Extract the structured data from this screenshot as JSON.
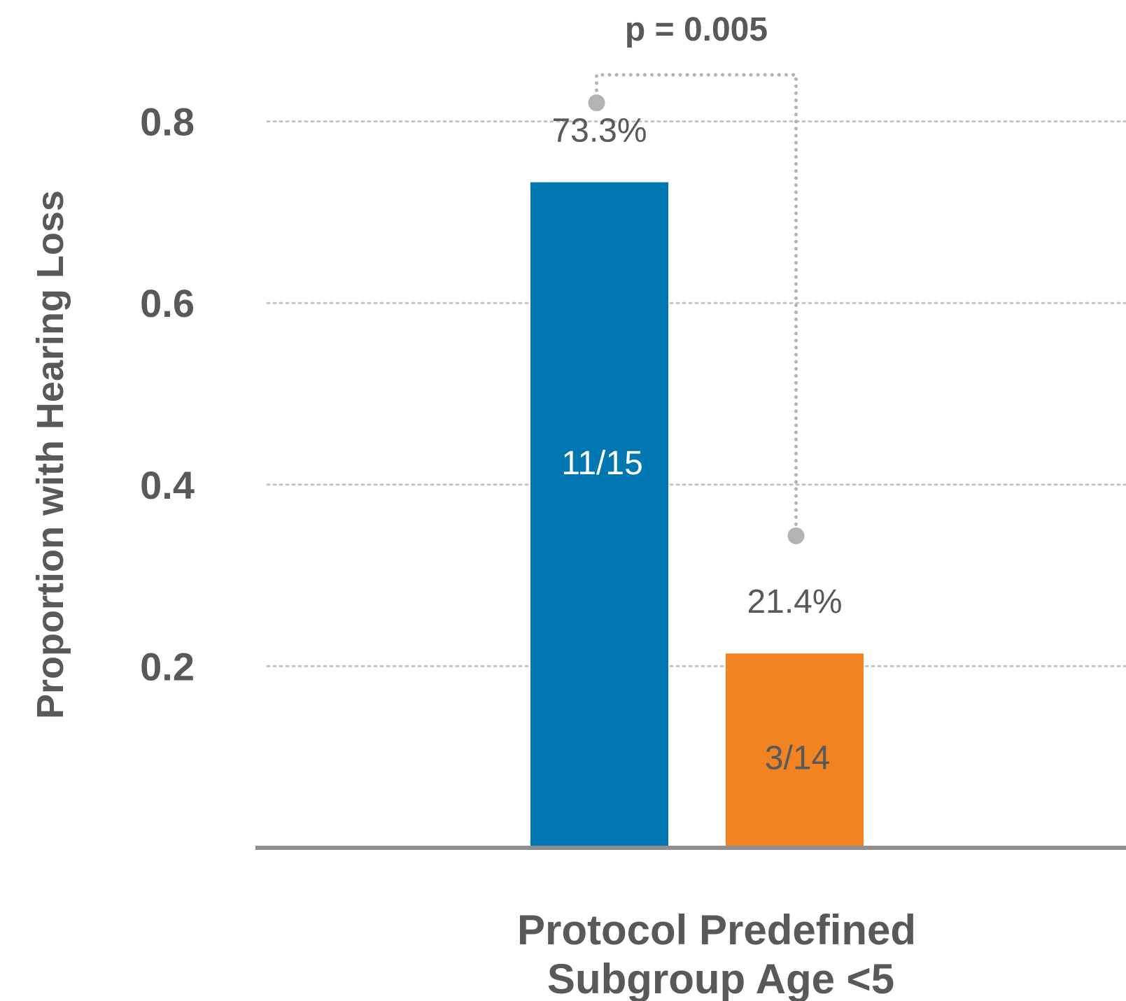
{
  "chart_data": {
    "type": "bar",
    "title": "",
    "ylabel": "Proportion with Hearing Loss",
    "xlabel": "",
    "category_label_lines": [
      "Protocol Predefined",
      "Subgroup Age <5"
    ],
    "ylim": [
      0,
      0.8
    ],
    "yticks": [
      0.2,
      0.4,
      0.6,
      0.8
    ],
    "ytick_labels": [
      "0.2",
      "0.4",
      "0.6",
      "0.8"
    ],
    "grid": true,
    "legend": "none",
    "series": [
      {
        "value": 0.733,
        "value_label": "73.3%",
        "count_label": "11/15",
        "color": "#0077b0",
        "count_label_color": "#ffffff"
      },
      {
        "value": 0.214,
        "value_label": "21.4%",
        "count_label": "3/14",
        "color": "#f28322",
        "count_label_color": "#58595b"
      }
    ],
    "annotation": {
      "text": "p = 0.005",
      "color": "#b3b3b3"
    }
  }
}
